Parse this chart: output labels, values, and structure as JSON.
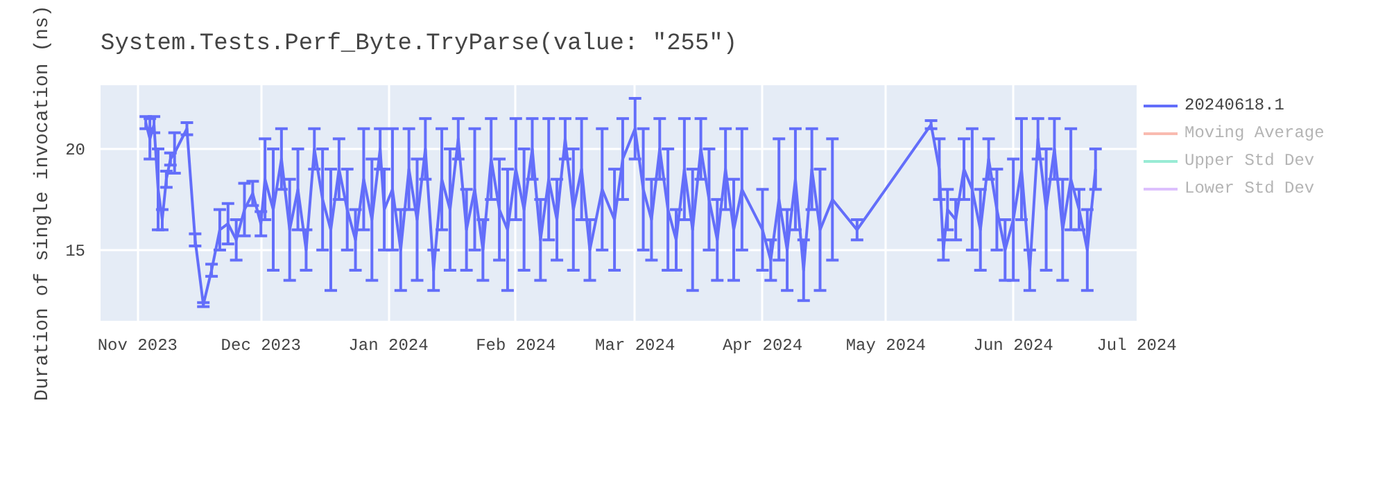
{
  "chart_data": {
    "type": "line",
    "title": "System.Tests.Perf_Byte.TryParse(value: \"255\")",
    "ylabel": "Duration of single invocation (ns)",
    "x": [
      "2023-11-03",
      "2023-11-04",
      "2023-11-05",
      "2023-11-06",
      "2023-11-07",
      "2023-11-08",
      "2023-11-09",
      "2023-11-10",
      "2023-11-13",
      "2023-11-15",
      "2023-11-17",
      "2023-11-19",
      "2023-11-21",
      "2023-11-23",
      "2023-11-25",
      "2023-11-27",
      "2023-11-29",
      "2023-12-01",
      "2023-12-02",
      "2023-12-04",
      "2023-12-06",
      "2023-12-08",
      "2023-12-10",
      "2023-12-12",
      "2023-12-14",
      "2023-12-16",
      "2023-12-18",
      "2023-12-20",
      "2023-12-22",
      "2023-12-24",
      "2023-12-26",
      "2023-12-28",
      "2023-12-30",
      "2023-12-31",
      "2024-01-02",
      "2024-01-04",
      "2024-01-06",
      "2024-01-08",
      "2024-01-10",
      "2024-01-12",
      "2024-01-14",
      "2024-01-16",
      "2024-01-18",
      "2024-01-20",
      "2024-01-22",
      "2024-01-24",
      "2024-01-26",
      "2024-01-28",
      "2024-01-30",
      "2024-02-01",
      "2024-02-03",
      "2024-02-05",
      "2024-02-07",
      "2024-02-09",
      "2024-02-11",
      "2024-02-13",
      "2024-02-15",
      "2024-02-17",
      "2024-02-19",
      "2024-02-22",
      "2024-02-25",
      "2024-02-27",
      "2024-03-01",
      "2024-03-03",
      "2024-03-05",
      "2024-03-07",
      "2024-03-09",
      "2024-03-11",
      "2024-03-13",
      "2024-03-15",
      "2024-03-17",
      "2024-03-19",
      "2024-03-21",
      "2024-03-23",
      "2024-03-25",
      "2024-03-27",
      "2024-04-01",
      "2024-04-03",
      "2024-04-05",
      "2024-04-07",
      "2024-04-09",
      "2024-04-11",
      "2024-04-13",
      "2024-04-15",
      "2024-04-18",
      "2024-04-24",
      "2024-05-12",
      "2024-05-14",
      "2024-05-15",
      "2024-05-16",
      "2024-05-18",
      "2024-05-20",
      "2024-05-22",
      "2024-05-24",
      "2024-05-26",
      "2024-05-28",
      "2024-05-30",
      "2024-06-01",
      "2024-06-03",
      "2024-06-05",
      "2024-06-07",
      "2024-06-09",
      "2024-06-11",
      "2024-06-13",
      "2024-06-15",
      "2024-06-17",
      "2024-06-19",
      "2024-06-21"
    ],
    "series": [
      {
        "name": "20240618.1",
        "color": "#636efa",
        "values": [
          21.3,
          20.5,
          21.2,
          18,
          16.5,
          18.5,
          19.5,
          19.8,
          21,
          15.5,
          12.3,
          14,
          16,
          16.3,
          15.5,
          17,
          17.8,
          16.3,
          18.5,
          17,
          19.5,
          16,
          18,
          15,
          20,
          17.5,
          16,
          19,
          17,
          15.5,
          18.5,
          16.5,
          20,
          17,
          18,
          15,
          19,
          16.5,
          20,
          14,
          18.5,
          17,
          20.5,
          16,
          18,
          15,
          19.5,
          17,
          16,
          19,
          17,
          20,
          15.5,
          18.5,
          16.5,
          20.5,
          17,
          19,
          15,
          18,
          16.5,
          19.5,
          21,
          18,
          16.5,
          20,
          17,
          15.5,
          19,
          16,
          20,
          17.5,
          15.5,
          19,
          16,
          18,
          16,
          14.5,
          17.5,
          15,
          18.5,
          14,
          19,
          16,
          17.5,
          16,
          21.2,
          19,
          15,
          17,
          16.5,
          19,
          18,
          16,
          19.5,
          17,
          15,
          16.5,
          19,
          14,
          20.5,
          17,
          20,
          16,
          18.5,
          17,
          15,
          19
        ],
        "errors": [
          0.3,
          1,
          0.4,
          2,
          0.5,
          0.4,
          0.3,
          1,
          0.3,
          0.3,
          0.1,
          0.3,
          1,
          1,
          1,
          1.3,
          0.6,
          0.6,
          2,
          3,
          1.5,
          2.5,
          2,
          1,
          1,
          2.5,
          3,
          1.5,
          2,
          1.5,
          2.5,
          3,
          1,
          2,
          3,
          2,
          2,
          3,
          1.5,
          1,
          2.5,
          3,
          1,
          2,
          3,
          1.5,
          2,
          2.5,
          3,
          2.5,
          3,
          1.5,
          2,
          3,
          2,
          1,
          3,
          2.5,
          1.5,
          3,
          2.5,
          2,
          1.5,
          3,
          2,
          1.5,
          3,
          1.5,
          2.5,
          3,
          1.5,
          2.5,
          2,
          2,
          2.5,
          3,
          2,
          1,
          3,
          2,
          2.5,
          1.5,
          2,
          3,
          3,
          0.5,
          0.2,
          1.5,
          0.5,
          1,
          1,
          1.5,
          3,
          2,
          1,
          2,
          1.5,
          3,
          2.5,
          1,
          1,
          3,
          1.5,
          2.5,
          2.5,
          1,
          2,
          1
        ]
      },
      {
        "name": "Moving Average",
        "color": "#ef553b",
        "values": [
          null,
          null,
          null,
          null,
          null,
          null,
          null,
          null,
          null,
          null,
          null,
          null,
          null,
          null,
          null,
          null,
          null,
          null,
          null,
          null,
          null,
          null,
          null,
          null,
          null,
          null,
          null,
          null,
          null,
          null,
          null,
          null,
          null,
          null,
          null,
          null,
          null,
          null,
          null,
          null,
          null,
          null,
          null,
          null,
          null,
          null,
          null,
          null,
          null,
          null,
          null,
          null,
          null,
          null,
          null,
          null,
          null,
          null,
          null,
          null,
          null,
          null,
          null,
          null,
          null,
          null,
          null,
          null,
          null,
          null,
          null,
          null,
          null,
          null,
          null,
          null,
          null,
          null,
          null,
          null,
          null,
          null,
          null,
          null,
          null,
          null,
          null,
          null,
          null,
          null,
          null,
          null,
          null,
          null,
          null,
          null,
          null,
          null,
          null,
          null,
          null,
          null,
          null,
          null,
          null,
          null,
          null,
          null
        ]
      },
      {
        "name": "Upper Std Dev",
        "color": "#00cc96",
        "values": [
          null,
          null,
          null,
          null,
          null,
          null,
          null,
          null,
          null,
          null,
          null,
          null,
          null,
          null,
          null,
          null,
          null,
          null,
          null,
          null,
          null,
          null,
          null,
          null,
          null,
          null,
          null,
          null,
          null,
          null,
          null,
          null,
          null,
          null,
          null,
          null,
          null,
          null,
          null,
          null,
          null,
          null,
          null,
          null,
          null,
          null,
          null,
          null,
          null,
          null,
          null,
          null,
          null,
          null,
          null,
          null,
          null,
          null,
          null,
          null,
          null,
          null,
          null,
          null,
          null,
          null,
          null,
          null,
          null,
          null,
          null,
          null,
          null,
          null,
          null,
          null,
          null,
          null,
          null,
          null,
          null,
          null,
          null,
          null,
          null,
          null,
          null,
          null,
          null,
          null,
          null,
          null,
          null,
          null,
          null,
          null,
          null,
          null,
          null,
          null,
          null,
          null,
          null,
          null,
          null,
          null,
          null,
          null
        ]
      },
      {
        "name": "Lower Std Dev",
        "color": "#ab63fa",
        "values": [
          null,
          null,
          null,
          null,
          null,
          null,
          null,
          null,
          null,
          null,
          null,
          null,
          null,
          null,
          null,
          null,
          null,
          null,
          null,
          null,
          null,
          null,
          null,
          null,
          null,
          null,
          null,
          null,
          null,
          null,
          null,
          null,
          null,
          null,
          null,
          null,
          null,
          null,
          null,
          null,
          null,
          null,
          null,
          null,
          null,
          null,
          null,
          null,
          null,
          null,
          null,
          null,
          null,
          null,
          null,
          null,
          null,
          null,
          null,
          null,
          null,
          null,
          null,
          null,
          null,
          null,
          null,
          null,
          null,
          null,
          null,
          null,
          null,
          null,
          null,
          null,
          null,
          null,
          null,
          null,
          null,
          null,
          null,
          null,
          null,
          null,
          null,
          null,
          null,
          null,
          null,
          null,
          null,
          null,
          null,
          null,
          null,
          null,
          null,
          null,
          null,
          null,
          null,
          null,
          null,
          null,
          null,
          null
        ]
      }
    ],
    "xlim": [
      "2023-10-23",
      "2024-07-01"
    ],
    "xticks": [
      {
        "value": "2023-11-01",
        "label": "Nov 2023"
      },
      {
        "value": "2023-12-01",
        "label": "Dec 2023"
      },
      {
        "value": "2024-01-01",
        "label": "Jan 2024"
      },
      {
        "value": "2024-02-01",
        "label": "Feb 2024"
      },
      {
        "value": "2024-03-01",
        "label": "Mar 2024"
      },
      {
        "value": "2024-04-01",
        "label": "Apr 2024"
      },
      {
        "value": "2024-05-01",
        "label": "May 2024"
      },
      {
        "value": "2024-06-01",
        "label": "Jun 2024"
      },
      {
        "value": "2024-07-01",
        "label": "Jul 2024"
      }
    ],
    "ylim": [
      11.5,
      23.15
    ],
    "yticks": [
      15,
      20
    ],
    "grid": true,
    "legend": "right",
    "line_style": "solid",
    "marker": "none"
  }
}
